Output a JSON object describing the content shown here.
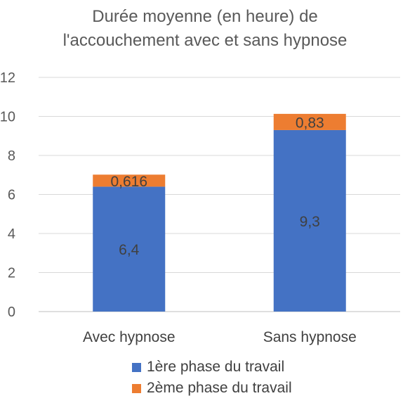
{
  "chart_data": {
    "type": "bar",
    "stacked": true,
    "title_lines": [
      "Durée moyenne (en heure) de",
      "l'accouchement avec et sans hypnose"
    ],
    "categories": [
      "Avec hypnose",
      "Sans hypnose"
    ],
    "series": [
      {
        "name": "1ère phase du travail",
        "values": [
          6.4,
          9.3
        ],
        "labels": [
          "6,4",
          "9,3"
        ],
        "color": "#4472C4"
      },
      {
        "name": "2ème phase du travail",
        "values": [
          0.616,
          0.83
        ],
        "labels": [
          "0,616",
          "0,83"
        ],
        "color": "#ED7D31"
      }
    ],
    "yticks": [
      "0",
      "2",
      "4",
      "6",
      "8",
      "10",
      "12"
    ],
    "ylim": [
      0,
      12
    ],
    "grid": true,
    "legend_position": "bottom"
  }
}
